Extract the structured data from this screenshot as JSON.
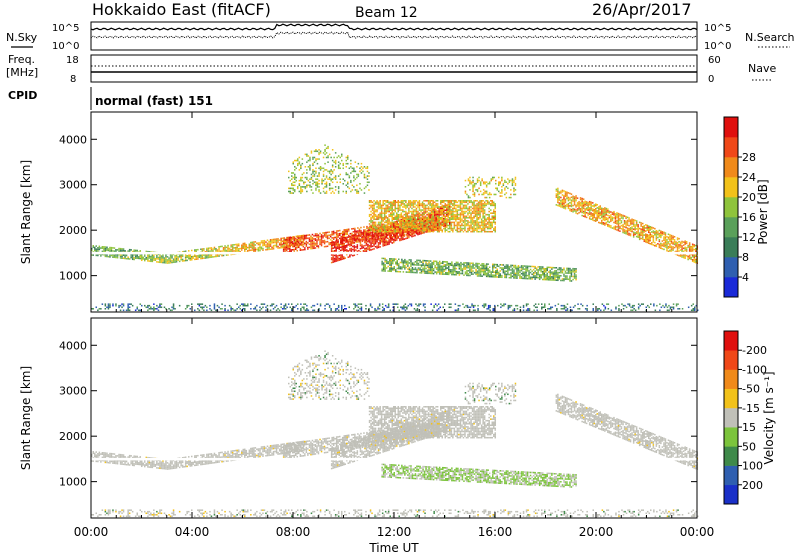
{
  "header": {
    "radar": "Hokkaido East (fitACF)",
    "beam": "Beam 12",
    "date": "26/Apr/2017"
  },
  "top_panels": {
    "nsky_label": "N.Sky",
    "nsearch_label": "N.Search",
    "log_ticks": [
      "10^5",
      "10^0"
    ],
    "freq_label_1": "Freq.",
    "freq_label_2": "[MHz]",
    "freq_ticks": [
      "18",
      "8"
    ],
    "nave_label": "Nave",
    "nave_ticks": [
      "60",
      "0"
    ],
    "cpid_label": "CPID",
    "cpid_text": "normal (fast) 151"
  },
  "chart_data": [
    {
      "type": "heatmap",
      "name": "power",
      "ylabel": "Slant Range [km]",
      "xlabel": "",
      "x_ticks": [
        "00:00",
        "04:00",
        "08:00",
        "12:00",
        "16:00",
        "20:00",
        "00:00"
      ],
      "y_ticks": [
        1000,
        2000,
        3000,
        4000
      ],
      "ylim": [
        200,
        4600
      ],
      "xlim_hours": [
        0,
        24
      ],
      "colorbar": {
        "label": "Power [dB]",
        "ticks": [
          "4",
          "8",
          "12",
          "16",
          "20",
          "24",
          "28"
        ],
        "range": [
          0,
          32
        ],
        "colors": [
          "#1a2ad8",
          "#2f5fb0",
          "#3a7d58",
          "#5aa05a",
          "#8fc43c",
          "#f2c21a",
          "#f08a1a",
          "#f04818",
          "#e0100e"
        ]
      }
    },
    {
      "type": "heatmap",
      "name": "velocity",
      "ylabel": "Slant Range [km]",
      "xlabel": "Time UT",
      "x_ticks": [
        "00:00",
        "04:00",
        "08:00",
        "12:00",
        "16:00",
        "20:00",
        "00:00"
      ],
      "y_ticks": [
        1000,
        2000,
        3000,
        4000
      ],
      "ylim": [
        200,
        4600
      ],
      "xlim_hours": [
        0,
        24
      ],
      "colorbar": {
        "label": "Velocity [m s⁻¹]",
        "ticks": [
          "200",
          "100",
          "50",
          "15",
          "-15",
          "-50",
          "-100",
          "-200"
        ],
        "colors": [
          "#1a30c8",
          "#2f5fb0",
          "#3f8a4a",
          "#7cc43c",
          "#c0c0b8",
          "#f2c21a",
          "#f08a1a",
          "#f04818",
          "#e0100e"
        ]
      }
    }
  ]
}
